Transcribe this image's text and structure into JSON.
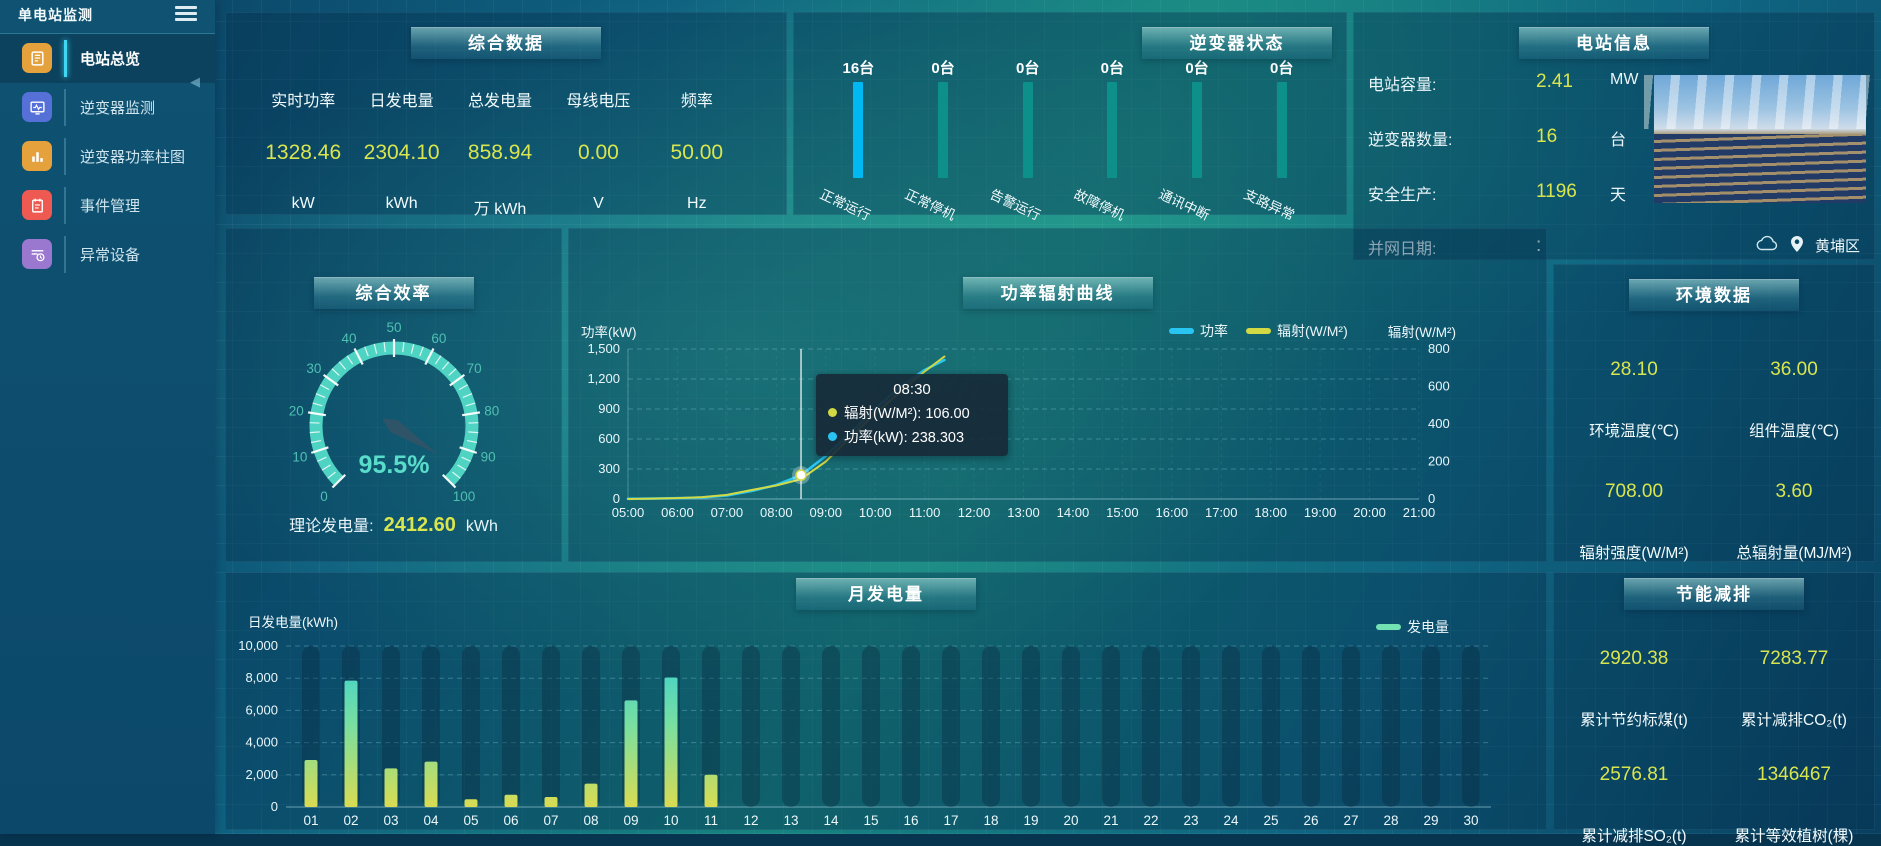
{
  "sidebar": {
    "title": "单电站监测",
    "items": [
      {
        "label": "电站总览",
        "icon": "overview-doc-icon",
        "active": true
      },
      {
        "label": "逆变器监测",
        "icon": "inverter-monitor-icon",
        "active": false
      },
      {
        "label": "逆变器功率柱图",
        "icon": "power-bars-icon",
        "active": false
      },
      {
        "label": "事件管理",
        "icon": "event-notebook-icon",
        "active": false
      },
      {
        "label": "异常设备",
        "icon": "abnormal-device-icon",
        "active": false
      }
    ]
  },
  "panels": {
    "summary": {
      "title": "综合数据",
      "metrics": [
        {
          "label": "实时功率",
          "value": "1328.46",
          "unit": "kW"
        },
        {
          "label": "日发电量",
          "value": "2304.10",
          "unit": "kWh"
        },
        {
          "label": "总发电量",
          "value": "858.94",
          "unit": "万 kWh"
        },
        {
          "label": "母线电压",
          "value": "0.00",
          "unit": "V"
        },
        {
          "label": "频率",
          "value": "50.00",
          "unit": "Hz"
        }
      ]
    },
    "inverter_status": {
      "title": "逆变器状态"
    },
    "station_info": {
      "title": "电站信息",
      "rows": [
        {
          "label": "电站容量:",
          "value": "2.41",
          "unit": "MW",
          "muted": false
        },
        {
          "label": "逆变器数量:",
          "value": "16",
          "unit": "台",
          "muted": false
        },
        {
          "label": "安全生产:",
          "value": "1196",
          "unit": "天",
          "muted": false
        },
        {
          "label": "并网日期:",
          "value": ":",
          "unit": "",
          "muted": true
        }
      ],
      "location": "黄埔区"
    },
    "efficiency": {
      "title": "综合效率",
      "theory_label": "理论发电量:",
      "theory_value": "2412.60",
      "theory_unit": "kWh"
    },
    "power_curve": {
      "title": "功率辐射曲线",
      "tooltip": {
        "time": "08:30",
        "rows": [
          {
            "color": "#d3d943",
            "text": "辐射(W/M²): 106.00"
          },
          {
            "color": "#29c5f2",
            "text": "功率(kW): 238.303"
          }
        ]
      }
    },
    "environment": {
      "title": "环境数据",
      "metrics": [
        {
          "value": "28.10",
          "label": "环境温度(℃)"
        },
        {
          "value": "36.00",
          "label": "组件温度(℃)"
        },
        {
          "value": "708.00",
          "label": "辐射强度(W/M²)"
        },
        {
          "value": "3.60",
          "label": "总辐射量(MJ/M²)"
        }
      ]
    },
    "monthly": {
      "title": "月发电量"
    },
    "saving": {
      "title": "节能减排",
      "metrics": [
        {
          "value": "2920.38",
          "label": "累计节约标煤(t)"
        },
        {
          "value": "7283.77",
          "label": "累计减排CO₂(t)"
        },
        {
          "value": "2576.81",
          "label": "累计减排SO₂(t)"
        },
        {
          "value": "1346467",
          "label": "累计等效植树(棵)"
        }
      ]
    }
  },
  "chart_data": [
    {
      "id": "inverter_status",
      "type": "bar",
      "categories": [
        "正常运行",
        "正常停机",
        "告警运行",
        "故障停机",
        "通讯中断",
        "支路异常"
      ],
      "values": [
        16,
        0,
        0,
        0,
        0,
        0
      ],
      "count_labels": [
        "16台",
        "0台",
        "0台",
        "0台",
        "0台",
        "0台"
      ],
      "highlight_color": "#00b9f2",
      "rail_color": "#0d9089"
    },
    {
      "id": "overall_efficiency",
      "type": "gauge",
      "min": 0,
      "max": 100,
      "value": 95.5,
      "display": "95.5%",
      "tick_labels": [
        "0",
        "10",
        "20",
        "30",
        "40",
        "50",
        "60",
        "70",
        "80",
        "90",
        "100"
      ],
      "arc_color": "#4fd3c3",
      "needle_color": "#2f5468",
      "value_color": "#59dcc9"
    },
    {
      "id": "power_radiation_curve",
      "type": "line",
      "x_tick_labels": [
        "05:00",
        "06:00",
        "07:00",
        "08:00",
        "09:00",
        "10:00",
        "11:00",
        "12:00",
        "13:00",
        "14:00",
        "15:00",
        "16:00",
        "17:00",
        "18:00",
        "19:00",
        "20:00",
        "21:00"
      ],
      "x_range": [
        5,
        21
      ],
      "y_left": {
        "label": "功率(kW)",
        "tick_labels": [
          "0",
          "300",
          "600",
          "900",
          "1,200",
          "1,500"
        ],
        "max": 1500
      },
      "y_right": {
        "label": "辐射(W/M²)",
        "tick_labels": [
          "0",
          "200",
          "400",
          "600",
          "800"
        ],
        "max": 800
      },
      "legend": [
        {
          "name": "功率",
          "color": "#29c5f2"
        },
        {
          "name": "辐射(W/M²)",
          "color": "#d3d943"
        }
      ],
      "series": [
        {
          "name": "功率",
          "axis": "left",
          "color": "#29c5f2",
          "points": [
            [
              5,
              2
            ],
            [
              5.5,
              4
            ],
            [
              6,
              8
            ],
            [
              6.5,
              15
            ],
            [
              7,
              35
            ],
            [
              7.5,
              80
            ],
            [
              8,
              140
            ],
            [
              8.5,
              238.3
            ],
            [
              9,
              430
            ],
            [
              9.5,
              660
            ],
            [
              10,
              900
            ],
            [
              10.5,
              1120
            ],
            [
              11,
              1290
            ],
            [
              11.4,
              1390
            ]
          ]
        },
        {
          "name": "辐射(W/M²)",
          "axis": "right",
          "color": "#d3d943",
          "points": [
            [
              5,
              0
            ],
            [
              5.5,
              2
            ],
            [
              6,
              5
            ],
            [
              6.5,
              10
            ],
            [
              7,
              22
            ],
            [
              7.5,
              48
            ],
            [
              8,
              72
            ],
            [
              8.5,
              106
            ],
            [
              9,
              200
            ],
            [
              9.5,
              330
            ],
            [
              10,
              455
            ],
            [
              10.5,
              570
            ],
            [
              11,
              680
            ],
            [
              11.4,
              760
            ]
          ]
        }
      ],
      "crosshair_x": 8.5,
      "marker": {
        "x": 8.5,
        "y_left": 238.3
      }
    },
    {
      "id": "monthly_generation",
      "type": "bar",
      "categories": [
        "01",
        "02",
        "03",
        "04",
        "05",
        "06",
        "07",
        "08",
        "09",
        "10",
        "11",
        "12",
        "13",
        "14",
        "15",
        "16",
        "17",
        "18",
        "19",
        "20",
        "21",
        "22",
        "23",
        "24",
        "25",
        "26",
        "27",
        "28",
        "29",
        "30"
      ],
      "values": [
        2920,
        7850,
        2400,
        2820,
        480,
        760,
        620,
        1450,
        6620,
        8040,
        2000,
        0,
        0,
        0,
        0,
        0,
        0,
        0,
        0,
        0,
        0,
        0,
        0,
        0,
        0,
        0,
        0,
        0,
        0,
        0
      ],
      "y": {
        "label": "日发电量(kWh)",
        "tick_labels": [
          "0",
          "2,000",
          "4,000",
          "6,000",
          "8,000",
          "10,000"
        ],
        "max": 10000
      },
      "legend": [
        {
          "name": "发电量",
          "color": "#72e2b2"
        }
      ],
      "bar_gradient": [
        "#d9db52",
        "#7adf9f",
        "#35cfd6"
      ]
    }
  ]
}
